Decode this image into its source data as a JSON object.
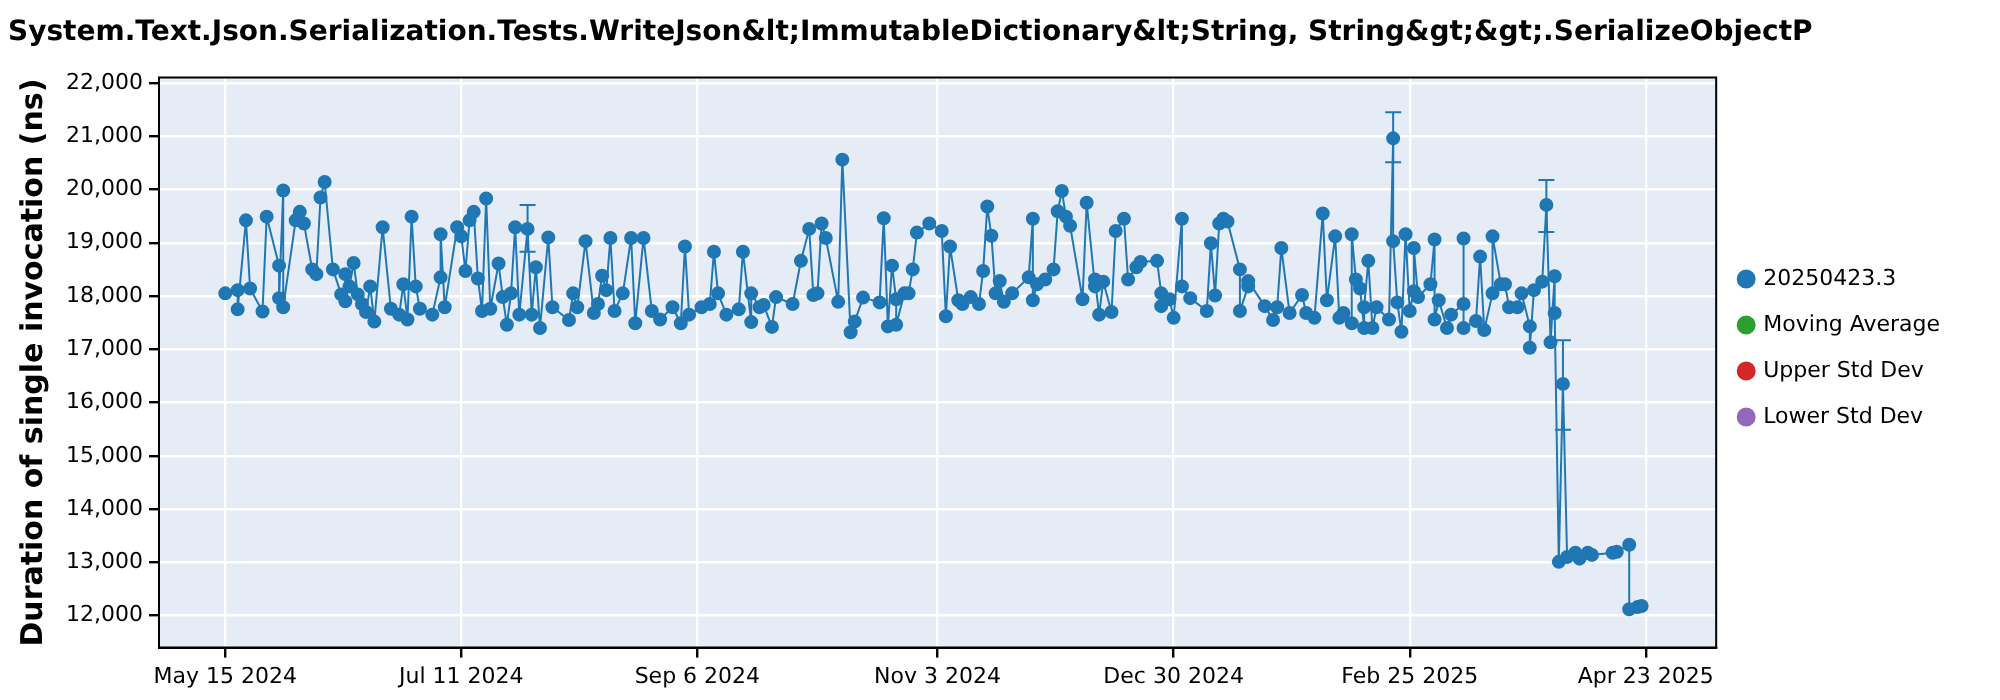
{
  "chart_data": {
    "type": "line",
    "title": "System.Text.Json.Serialization.Tests.WriteJson&lt;ImmutableDictionary&lt;String, String&gt;&gt;.SerializeObjectP",
    "ylabel": "Duration of single invocation (ns)",
    "xlim": [
      "2024-04-29",
      "2025-05-10"
    ],
    "xticks": [
      {
        "value": "2024-05-15",
        "label": "May 15 2024"
      },
      {
        "value": "2024-07-11",
        "label": "Jul 11 2024"
      },
      {
        "value": "2024-09-06",
        "label": "Sep 6 2024"
      },
      {
        "value": "2024-11-03",
        "label": "Nov 3 2024"
      },
      {
        "value": "2024-12-30",
        "label": "Dec 30 2024"
      },
      {
        "value": "2025-02-25",
        "label": "Feb 25 2025"
      },
      {
        "value": "2025-04-23",
        "label": "Apr 23 2025"
      }
    ],
    "ylim": [
      11400,
      22100
    ],
    "yticks": [
      {
        "value": 12000,
        "label": "12,000"
      },
      {
        "value": 13000,
        "label": "13,000"
      },
      {
        "value": 14000,
        "label": "14,000"
      },
      {
        "value": 15000,
        "label": "15,000"
      },
      {
        "value": 16000,
        "label": "16,000"
      },
      {
        "value": 17000,
        "label": "17,000"
      },
      {
        "value": 18000,
        "label": "18,000"
      },
      {
        "value": 19000,
        "label": "19,000"
      },
      {
        "value": 20000,
        "label": "20,000"
      },
      {
        "value": 21000,
        "label": "21,000"
      },
      {
        "value": 22000,
        "label": "22,000"
      }
    ],
    "grid": true,
    "legend": "right",
    "marker": "circle",
    "line_style": "solid",
    "series": [
      {
        "name": "20250423.3",
        "color": "#1f77b4",
        "x": [
          "2024-05-15",
          "2024-05-18",
          "2024-05-18",
          "2024-05-20",
          "2024-05-21",
          "2024-05-24",
          "2024-05-25",
          "2024-05-28",
          "2024-05-28",
          "2024-05-29",
          "2024-05-29",
          "2024-06-01",
          "2024-06-02",
          "2024-06-03",
          "2024-06-05",
          "2024-06-06",
          "2024-06-07",
          "2024-06-08",
          "2024-06-10",
          "2024-06-12",
          "2024-06-13",
          "2024-06-13",
          "2024-06-14",
          "2024-06-15",
          "2024-06-16",
          "2024-06-17",
          "2024-06-18",
          "2024-06-19",
          "2024-06-20",
          "2024-06-22",
          "2024-06-24",
          "2024-06-26",
          "2024-06-27",
          "2024-06-28",
          "2024-06-29",
          "2024-06-30",
          "2024-07-01",
          "2024-07-04",
          "2024-07-06",
          "2024-07-06",
          "2024-07-07",
          "2024-07-10",
          "2024-07-11",
          "2024-07-12",
          "2024-07-13",
          "2024-07-14",
          "2024-07-15",
          "2024-07-16",
          "2024-07-17",
          "2024-07-18",
          "2024-07-20",
          "2024-07-21",
          "2024-07-22",
          "2024-07-23",
          "2024-07-24",
          "2024-07-25",
          "2024-07-27",
          "2024-07-28",
          "2024-07-29",
          "2024-07-30",
          "2024-08-01",
          "2024-08-02",
          "2024-08-06",
          "2024-08-07",
          "2024-08-08",
          "2024-08-10",
          "2024-08-12",
          "2024-08-13",
          "2024-08-14",
          "2024-08-15",
          "2024-08-16",
          "2024-08-17",
          "2024-08-19",
          "2024-08-21",
          "2024-08-22",
          "2024-08-24",
          "2024-08-26",
          "2024-08-28",
          "2024-08-31",
          "2024-09-02",
          "2024-09-03",
          "2024-09-04",
          "2024-09-07",
          "2024-09-09",
          "2024-09-10",
          "2024-09-11",
          "2024-09-13",
          "2024-09-16",
          "2024-09-17",
          "2024-09-19",
          "2024-09-19",
          "2024-09-21",
          "2024-09-22",
          "2024-09-24",
          "2024-09-25",
          "2024-09-29",
          "2024-10-01",
          "2024-10-03",
          "2024-10-04",
          "2024-10-05",
          "2024-10-06",
          "2024-10-07",
          "2024-10-10",
          "2024-10-11",
          "2024-10-13",
          "2024-10-14",
          "2024-10-16",
          "2024-10-20",
          "2024-10-21",
          "2024-10-22",
          "2024-10-23",
          "2024-10-24",
          "2024-10-24",
          "2024-10-26",
          "2024-10-27",
          "2024-10-28",
          "2024-10-29",
          "2024-11-01",
          "2024-11-04",
          "2024-11-05",
          "2024-11-06",
          "2024-11-08",
          "2024-11-09",
          "2024-11-11",
          "2024-11-13",
          "2024-11-14",
          "2024-11-15",
          "2024-11-16",
          "2024-11-17",
          "2024-11-18",
          "2024-11-19",
          "2024-11-21",
          "2024-11-25",
          "2024-11-26",
          "2024-11-26",
          "2024-11-27",
          "2024-11-29",
          "2024-12-01",
          "2024-12-02",
          "2024-12-03",
          "2024-12-04",
          "2024-12-05",
          "2024-12-08",
          "2024-12-09",
          "2024-12-11",
          "2024-12-11",
          "2024-12-12",
          "2024-12-13",
          "2024-12-15",
          "2024-12-16",
          "2024-12-18",
          "2024-12-19",
          "2024-12-21",
          "2024-12-22",
          "2024-12-26",
          "2024-12-27",
          "2024-12-27",
          "2024-12-29",
          "2024-12-30",
          "2025-01-01",
          "2025-01-01",
          "2025-01-03",
          "2025-01-07",
          "2025-01-08",
          "2025-01-09",
          "2025-01-10",
          "2025-01-11",
          "2025-01-12",
          "2025-01-15",
          "2025-01-15",
          "2025-01-17",
          "2025-01-17",
          "2025-01-21",
          "2025-01-23",
          "2025-01-24",
          "2025-01-25",
          "2025-01-27",
          "2025-01-30",
          "2025-01-31",
          "2025-02-02",
          "2025-02-04",
          "2025-02-05",
          "2025-02-07",
          "2025-02-08",
          "2025-02-09",
          "2025-02-11",
          "2025-02-11",
          "2025-02-12",
          "2025-02-13",
          "2025-02-14",
          "2025-02-14",
          "2025-02-15",
          "2025-02-16",
          "2025-02-17",
          "2025-02-20",
          "2025-02-21",
          "2025-02-21",
          "2025-02-22",
          "2025-02-23",
          "2025-02-24",
          "2025-02-25",
          "2025-02-26",
          "2025-02-26",
          "2025-02-27",
          "2025-03-02",
          "2025-03-03",
          "2025-03-03",
          "2025-03-04",
          "2025-03-06",
          "2025-03-07",
          "2025-03-10",
          "2025-03-10",
          "2025-03-10",
          "2025-03-13",
          "2025-03-14",
          "2025-03-15",
          "2025-03-17",
          "2025-03-17",
          "2025-03-19",
          "2025-03-20",
          "2025-03-21",
          "2025-03-23",
          "2025-03-24",
          "2025-03-26",
          "2025-03-26",
          "2025-03-27",
          "2025-03-29",
          "2025-03-30",
          "2025-03-31",
          "2025-04-01",
          "2025-04-01",
          "2025-04-02",
          "2025-04-03",
          "2025-04-04",
          "2025-04-06",
          "2025-04-07",
          "2025-04-09",
          "2025-04-10",
          "2025-04-15",
          "2025-04-16",
          "2025-04-19",
          "2025-04-19",
          "2025-04-21",
          "2025-04-22"
        ],
        "values": [
          18050,
          18110,
          17750,
          19420,
          18140,
          17710,
          19490,
          18570,
          17960,
          19980,
          17790,
          19420,
          19580,
          19360,
          18500,
          18410,
          19850,
          20140,
          18500,
          18030,
          17900,
          18410,
          18180,
          18620,
          18030,
          17850,
          17700,
          18180,
          17520,
          19290,
          17760,
          17650,
          18220,
          17560,
          19490,
          18180,
          17760,
          17650,
          18350,
          19160,
          17790,
          19290,
          19120,
          18470,
          19420,
          19580,
          18330,
          17720,
          19830,
          17760,
          18610,
          17980,
          17460,
          18050,
          19290,
          17650,
          19260,
          17650,
          18540,
          17400,
          19100,
          17790,
          17550,
          18050,
          17790,
          19030,
          17680,
          17850,
          18380,
          18110,
          19090,
          17720,
          18050,
          19090,
          17490,
          19090,
          17720,
          17560,
          17790,
          17490,
          18930,
          17650,
          17790,
          17850,
          18830,
          18050,
          17650,
          17750,
          18830,
          17510,
          18050,
          17790,
          17830,
          17420,
          17980,
          17850,
          18660,
          19260,
          18020,
          18050,
          19360,
          19090,
          17890,
          20560,
          17320,
          17520,
          17970,
          17880,
          19460,
          17430,
          18570,
          17940,
          17460,
          18050,
          18050,
          18500,
          19190,
          19360,
          19220,
          17620,
          18930,
          17920,
          17850,
          17980,
          17850,
          18470,
          19680,
          19130,
          18050,
          18280,
          17890,
          18050,
          18350,
          19450,
          17920,
          18220,
          18310,
          18500,
          19590,
          19970,
          19490,
          19320,
          17940,
          19750,
          18180,
          18310,
          17650,
          18270,
          17700,
          19220,
          19450,
          18310,
          18540,
          18640,
          18660,
          18050,
          17810,
          17940,
          17590,
          19450,
          18180,
          17960,
          17720,
          18990,
          18010,
          19360,
          19450,
          19400,
          18500,
          17720,
          18180,
          18280,
          17810,
          17550,
          17790,
          18900,
          17680,
          18020,
          17680,
          17590,
          19550,
          17920,
          19120,
          17590,
          17680,
          17490,
          19160,
          18310,
          18140,
          17400,
          17790,
          18660,
          17400,
          17790,
          17560,
          20960,
          19030,
          17880,
          17330,
          19160,
          17720,
          18090,
          18900,
          17980,
          18220,
          19060,
          17560,
          17920,
          17400,
          17650,
          17850,
          19080,
          17400,
          17530,
          18740,
          17360,
          18050,
          19120,
          18220,
          18220,
          17790,
          17790,
          18050,
          17430,
          17030,
          18110,
          18270,
          19710,
          17130,
          18370,
          17680,
          13010,
          16350,
          13100,
          13180,
          13070,
          13180,
          13140,
          13180,
          13200,
          13330,
          12120,
          12160,
          12180
        ],
        "errors": [
          null,
          null,
          null,
          null,
          null,
          null,
          null,
          null,
          null,
          null,
          null,
          null,
          null,
          null,
          null,
          null,
          null,
          null,
          null,
          null,
          null,
          null,
          null,
          null,
          null,
          null,
          null,
          null,
          null,
          null,
          null,
          null,
          null,
          null,
          null,
          null,
          null,
          null,
          null,
          null,
          null,
          null,
          null,
          null,
          null,
          null,
          null,
          null,
          null,
          null,
          null,
          null,
          null,
          null,
          null,
          null,
          [
            18830,
            19710
          ],
          null,
          null,
          null,
          null,
          null,
          null,
          null,
          null,
          null,
          null,
          null,
          null,
          null,
          null,
          null,
          null,
          null,
          null,
          null,
          null,
          null,
          null,
          null,
          null,
          null,
          null,
          null,
          null,
          null,
          null,
          null,
          null,
          null,
          null,
          null,
          null,
          null,
          null,
          null,
          null,
          null,
          null,
          null,
          null,
          null,
          null,
          null,
          null,
          null,
          null,
          null,
          null,
          null,
          null,
          null,
          null,
          null,
          null,
          null,
          null,
          null,
          null,
          null,
          null,
          null,
          null,
          null,
          null,
          null,
          null,
          null,
          null,
          null,
          null,
          null,
          null,
          null,
          null,
          null,
          null,
          null,
          null,
          null,
          null,
          null,
          null,
          null,
          null,
          null,
          null,
          null,
          null,
          null,
          null,
          null,
          null,
          null,
          null,
          null,
          null,
          null,
          null,
          null,
          null,
          null,
          null,
          null,
          null,
          null,
          null,
          null,
          null,
          null,
          null,
          null,
          null,
          null,
          null,
          null,
          null,
          null,
          null,
          null,
          null,
          null,
          null,
          null,
          null,
          null,
          null,
          null,
          null,
          null,
          null,
          null,
          null,
          null,
          null,
          [
            20510,
            21450
          ],
          null,
          null,
          null,
          null,
          null,
          null,
          null,
          null,
          null,
          null,
          null,
          null,
          null,
          null,
          null,
          null,
          null,
          null,
          null,
          null,
          null,
          null,
          null,
          null,
          null,
          null,
          null,
          null,
          null,
          null,
          null,
          [
            19200,
            20180
          ],
          null,
          null,
          null,
          null,
          [
            15490,
            17170
          ],
          null,
          null,
          null,
          null,
          null,
          null,
          null,
          null,
          null,
          null,
          null
        ]
      },
      {
        "name": "Moving Average",
        "color": "#2ca02c"
      },
      {
        "name": "Upper Std Dev",
        "color": "#d62728"
      },
      {
        "name": "Lower Std Dev",
        "color": "#9467bd"
      }
    ]
  }
}
